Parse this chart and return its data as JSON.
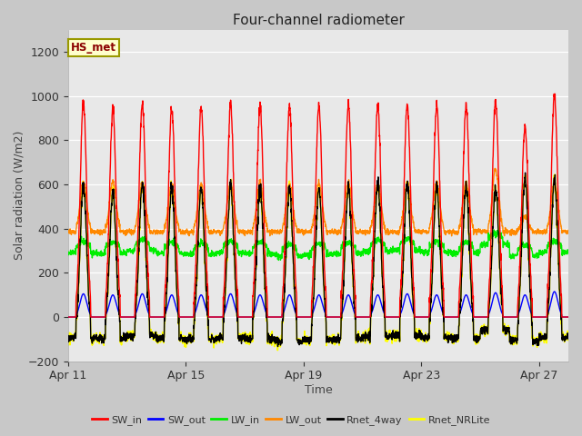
{
  "title": "Four-channel radiometer",
  "xlabel": "Time",
  "ylabel": "Solar radiation (W/m2)",
  "ylim": [
    -200,
    1300
  ],
  "yticks": [
    -200,
    0,
    200,
    400,
    600,
    800,
    1000,
    1200
  ],
  "fig_bg": "#c8c8c8",
  "plot_bg": "#e8e8e8",
  "series": {
    "SW_in": {
      "color": "#ff0000",
      "lw": 1.0
    },
    "SW_out": {
      "color": "#0000ff",
      "lw": 1.0
    },
    "LW_in": {
      "color": "#00ee00",
      "lw": 1.0
    },
    "LW_out": {
      "color": "#ff8800",
      "lw": 1.0
    },
    "Rnet_4way": {
      "color": "#000000",
      "lw": 1.0
    },
    "Rnet_NRLite": {
      "color": "#ffff00",
      "lw": 1.2
    }
  },
  "legend_labels": [
    "SW_in",
    "SW_out",
    "LW_in",
    "LW_out",
    "Rnet_4way",
    "Rnet_NRLite"
  ],
  "legend_colors": [
    "#ff0000",
    "#0000ff",
    "#00ee00",
    "#ff8800",
    "#000000",
    "#ffff00"
  ],
  "station_label": "HS_met",
  "n_days": 17,
  "pts_per_day": 144,
  "xtick_positions": [
    0,
    4,
    8,
    12,
    16
  ],
  "xtick_labels": [
    "Apr 11",
    "Apr 15",
    "Apr 19",
    "Apr 23",
    "Apr 27"
  ]
}
